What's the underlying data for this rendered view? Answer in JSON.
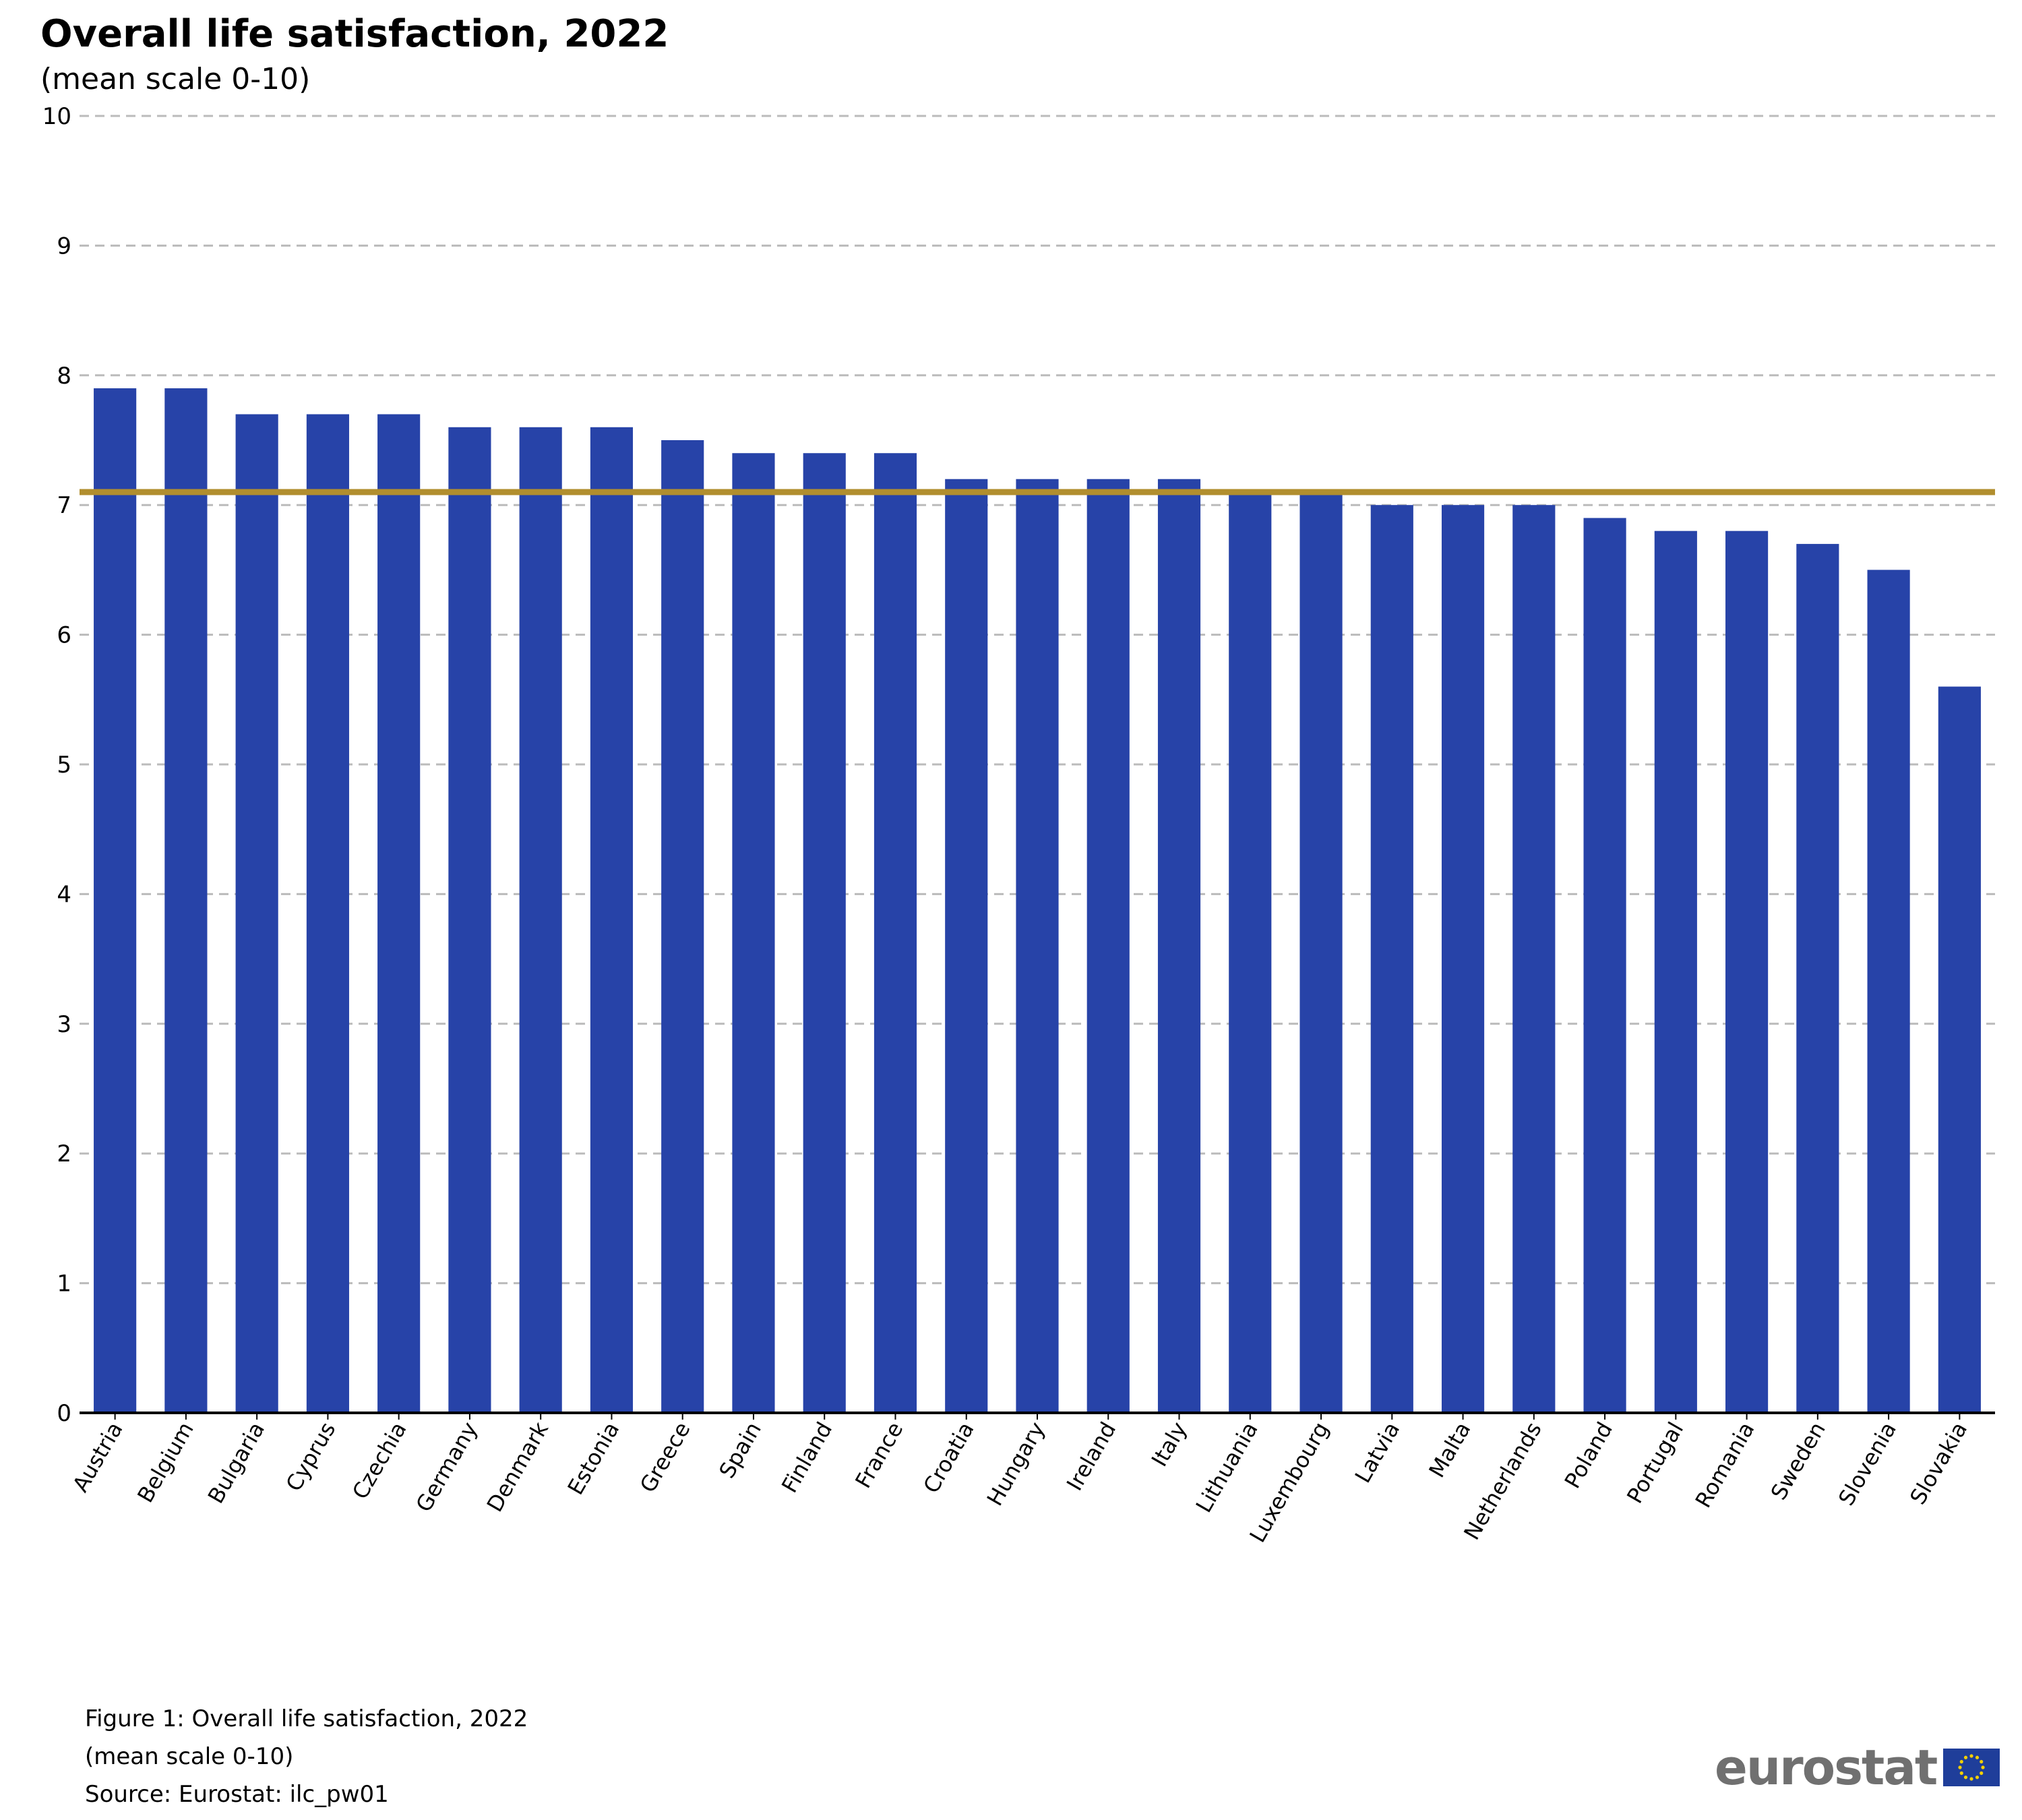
{
  "header": {
    "title": "Overall life satisfaction, 2022",
    "subtitle": "(mean scale 0-10)"
  },
  "notes": {
    "figure": "Figure 1: Overall life satisfaction, 2022",
    "unit": "(mean scale 0-10)",
    "source": "Source: Eurostat: ilc_pw01"
  },
  "logo": {
    "text": "eurostat",
    "icon": "eu-flag-icon"
  },
  "colors": {
    "bar": "#2743A8",
    "reference_line": "#B18E2E",
    "grid": "#BBBBBB",
    "axis": "#000000"
  },
  "chart_data": {
    "type": "bar",
    "title": "Overall life satisfaction, 2022",
    "subtitle": "(mean scale 0-10)",
    "categories": [
      "Austria",
      "Belgium",
      "Bulgaria",
      "Cyprus",
      "Czechia",
      "Germany",
      "Denmark",
      "Estonia",
      "Greece",
      "Spain",
      "Finland",
      "France",
      "Croatia",
      "Hungary",
      "Ireland",
      "Italy",
      "Lithuania",
      "Luxembourg",
      "Latvia",
      "Malta",
      "Netherlands",
      "Poland",
      "Portugal",
      "Romania",
      "Sweden",
      "Slovenia",
      "Slovakia"
    ],
    "values": [
      7.9,
      7.9,
      7.7,
      7.7,
      7.7,
      7.6,
      7.6,
      7.6,
      7.5,
      7.4,
      7.4,
      7.4,
      7.2,
      7.2,
      7.2,
      7.2,
      7.1,
      7.1,
      7.0,
      7.0,
      7.0,
      6.9,
      6.8,
      6.8,
      6.7,
      6.5,
      5.6
    ],
    "reference_line": {
      "value": 7.1
    },
    "ylim": [
      0,
      10
    ],
    "yticks": [
      "0",
      "1",
      "2",
      "3",
      "4",
      "5",
      "6",
      "7",
      "8",
      "9",
      "10"
    ],
    "xlabel": "",
    "ylabel": "",
    "grid": "horizontal dashed",
    "legend": "none"
  }
}
